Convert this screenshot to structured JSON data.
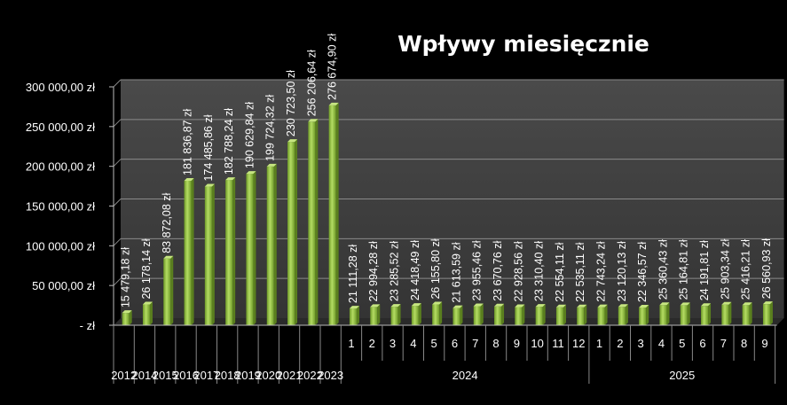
{
  "chart_data": {
    "type": "bar",
    "title": "Wpływy miesięcznie",
    "xlabel": "",
    "ylabel": "",
    "ylim": [
      0,
      300000
    ],
    "grid": true,
    "legend": "none",
    "bar_color": "#8fbf3c",
    "y_ticks": [
      "-   zł",
      "50 000,00 zł",
      "100 000,00 zł",
      "150 000,00 zł",
      "200 000,00 zł",
      "250 000,00 zł",
      "300 000,00 zł"
    ],
    "categories": [
      "2012",
      "2014",
      "2015",
      "2016",
      "2017",
      "2018",
      "2019",
      "2020",
      "2021",
      "2022",
      "2023",
      "1",
      "2",
      "3",
      "4",
      "5",
      "6",
      "7",
      "8",
      "9",
      "10",
      "11",
      "12",
      "1",
      "2",
      "3",
      "4",
      "5",
      "6",
      "7",
      "8",
      "9"
    ],
    "groups": [
      {
        "label": "2024",
        "start": 11,
        "end": 22
      },
      {
        "label": "2025",
        "start": 23,
        "end": 31
      }
    ],
    "values": [
      15479.18,
      26178.14,
      83872.08,
      181836.87,
      174485.86,
      182788.24,
      190629.84,
      199724.32,
      230723.5,
      256206.64,
      276674.9,
      21111.28,
      22994.28,
      23285.52,
      24418.49,
      26155.8,
      21613.59,
      23955.46,
      23670.76,
      22928.56,
      23310.4,
      22554.11,
      22535.11,
      22743.24,
      23120.13,
      22346.57,
      25360.43,
      25164.81,
      24191.81,
      25903.34,
      25416.21,
      26560.93
    ],
    "data_labels": [
      "15 479,18 zł",
      "26 178,14 zł",
      "83 872,08 zł",
      "181 836,87 zł",
      "174 485,86 zł",
      "182 788,24 zł",
      "190 629,84 zł",
      "199 724,32 zł",
      "230 723,50 zł",
      "256 206,64 zł",
      "276 674,90 zł",
      "21 111,28 zł",
      "22 994,28 zł",
      "23 285,52 zł",
      "24 418,49 zł",
      "26 155,80 zł",
      "21 613,59 zł",
      "23 955,46 zł",
      "23 670,76 zł",
      "22 928,56 zł",
      "23 310,40 zł",
      "22 554,11 zł",
      "22 535,11 zł",
      "22 743,24 zł",
      "23 120,13 zł",
      "22 346,57 zł",
      "25 360,43 zł",
      "25 164,81 zł",
      "24 191,81 zł",
      "25 903,34 zł",
      "25 416,21 zł",
      "26 560,93 zł"
    ]
  }
}
